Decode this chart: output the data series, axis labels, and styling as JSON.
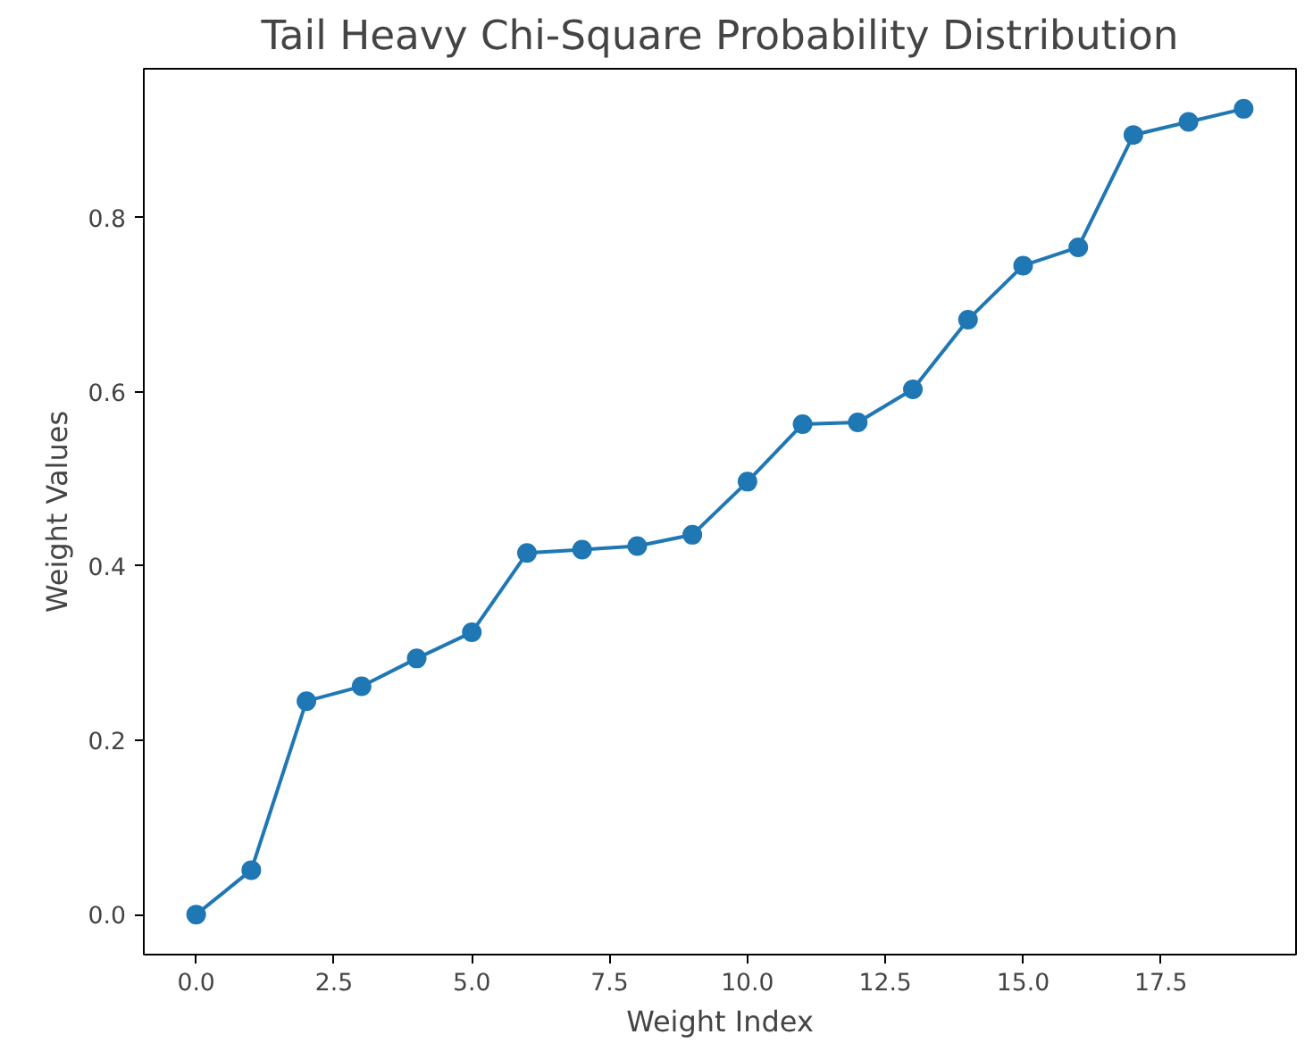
{
  "chart_data": {
    "type": "line",
    "title": "Tail Heavy Chi-Square Probability Distribution",
    "xlabel": "Weight Index",
    "ylabel": "Weight Values",
    "x": [
      0,
      1,
      2,
      3,
      4,
      5,
      6,
      7,
      8,
      9,
      10,
      11,
      12,
      13,
      14,
      15,
      16,
      17,
      18,
      19
    ],
    "series": [
      {
        "color": "#1f77b4",
        "values": [
          0,
          0.051,
          0.245,
          0.262,
          0.294,
          0.324,
          0.415,
          0.419,
          0.423,
          0.436,
          0.497,
          0.563,
          0.565,
          0.603,
          0.683,
          0.745,
          0.766,
          0.895,
          0.91,
          0.925
        ]
      }
    ],
    "xlim": [
      -0.95,
      19.95
    ],
    "ylim": [
      -0.046,
      0.971
    ],
    "xticks": [
      {
        "value": 0,
        "label": "0.0"
      },
      {
        "value": 2.5,
        "label": "2.5"
      },
      {
        "value": 5,
        "label": "5.0"
      },
      {
        "value": 7.5,
        "label": "7.5"
      },
      {
        "value": 10,
        "label": "10.0"
      },
      {
        "value": 12.5,
        "label": "12.5"
      },
      {
        "value": 15,
        "label": "15.0"
      },
      {
        "value": 17.5,
        "label": "17.5"
      }
    ],
    "yticks": [
      {
        "value": 0,
        "label": "0.0"
      },
      {
        "value": 0.2,
        "label": "0.2"
      },
      {
        "value": 0.4,
        "label": "0.4"
      },
      {
        "value": 0.6,
        "label": "0.6"
      },
      {
        "value": 0.8,
        "label": "0.8"
      }
    ],
    "marker": "circle",
    "line_style": "solid"
  }
}
